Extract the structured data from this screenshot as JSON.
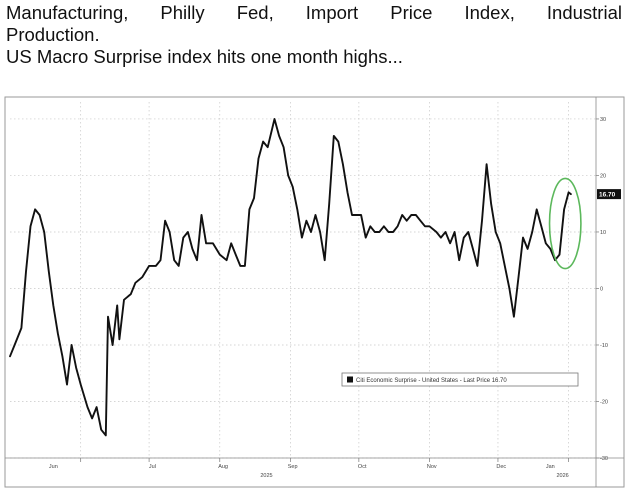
{
  "caption": {
    "line1_words": [
      "Manufacturing,",
      "Philly",
      "Fed,",
      "Import",
      "Price",
      "Index,",
      "Industrial"
    ],
    "line2": "Production.",
    "line3": "US Macro Surprise index hits one month highs..."
  },
  "chart_data": {
    "type": "line",
    "title": "",
    "xlabel": "",
    "ylabel": "",
    "ylim": [
      -30,
      33
    ],
    "y_ticks": [
      30,
      20,
      10,
      0,
      -10,
      -20,
      -30
    ],
    "x_range": [
      "2025-05-01",
      "2026-01-13"
    ],
    "month_ticks": [
      {
        "label": "Jun",
        "date": "2025-06-01"
      },
      {
        "label": "Jul",
        "date": "2025-07-01"
      },
      {
        "label": "Aug",
        "date": "2025-08-01"
      },
      {
        "label": "Sep",
        "date": "2025-09-01"
      },
      {
        "label": "Oct",
        "date": "2025-10-01"
      },
      {
        "label": "Nov",
        "date": "2025-11-01"
      },
      {
        "label": "Dec",
        "date": "2025-12-01"
      },
      {
        "label": "Jan",
        "date": "2026-01-01"
      }
    ],
    "year_labels": [
      {
        "label": "2025",
        "date": "2025-09-01"
      },
      {
        "label": "2026",
        "date": "2026-01-01"
      }
    ],
    "grid": true,
    "legend_position": "bottom-right",
    "legend_label": "Citi Economic Surprise - United States - Last Price 16.70",
    "last_value_label": "16.70",
    "highlight_circle": "last week of the series",
    "colors": {
      "line": "#111111",
      "highlight": "#5cb85c",
      "badge": "#111111",
      "grid": "#c8c8c8"
    },
    "series": [
      {
        "points": [
          [
            "2025-05-01",
            -12
          ],
          [
            "2025-05-03",
            -10
          ],
          [
            "2025-05-06",
            -7
          ],
          [
            "2025-05-08",
            3
          ],
          [
            "2025-05-10",
            11
          ],
          [
            "2025-05-12",
            14
          ],
          [
            "2025-05-14",
            13
          ],
          [
            "2025-05-16",
            10
          ],
          [
            "2025-05-18",
            3
          ],
          [
            "2025-05-20",
            -3
          ],
          [
            "2025-05-22",
            -8
          ],
          [
            "2025-05-24",
            -12
          ],
          [
            "2025-05-26",
            -17
          ],
          [
            "2025-05-28",
            -10
          ],
          [
            "2025-05-30",
            -14
          ],
          [
            "2025-06-01",
            -17
          ],
          [
            "2025-06-04",
            -21
          ],
          [
            "2025-06-06",
            -23
          ],
          [
            "2025-06-08",
            -21
          ],
          [
            "2025-06-10",
            -25
          ],
          [
            "2025-06-12",
            -26
          ],
          [
            "2025-06-13",
            -5
          ],
          [
            "2025-06-15",
            -10
          ],
          [
            "2025-06-17",
            -3
          ],
          [
            "2025-06-18",
            -9
          ],
          [
            "2025-06-20",
            -2
          ],
          [
            "2025-06-23",
            -1
          ],
          [
            "2025-06-25",
            1
          ],
          [
            "2025-06-28",
            2
          ],
          [
            "2025-07-01",
            4
          ],
          [
            "2025-07-04",
            4
          ],
          [
            "2025-07-06",
            5
          ],
          [
            "2025-07-08",
            12
          ],
          [
            "2025-07-10",
            10
          ],
          [
            "2025-07-12",
            5
          ],
          [
            "2025-07-14",
            4
          ],
          [
            "2025-07-16",
            9
          ],
          [
            "2025-07-18",
            10
          ],
          [
            "2025-07-20",
            7
          ],
          [
            "2025-07-22",
            5
          ],
          [
            "2025-07-24",
            13
          ],
          [
            "2025-07-26",
            8
          ],
          [
            "2025-07-29",
            8
          ],
          [
            "2025-08-01",
            6
          ],
          [
            "2025-08-04",
            5
          ],
          [
            "2025-08-06",
            8
          ],
          [
            "2025-08-08",
            6
          ],
          [
            "2025-08-10",
            4
          ],
          [
            "2025-08-12",
            4
          ],
          [
            "2025-08-14",
            14
          ],
          [
            "2025-08-16",
            16
          ],
          [
            "2025-08-18",
            23
          ],
          [
            "2025-08-20",
            26
          ],
          [
            "2025-08-22",
            25
          ],
          [
            "2025-08-25",
            30
          ],
          [
            "2025-08-27",
            27
          ],
          [
            "2025-08-29",
            25
          ],
          [
            "2025-08-31",
            20
          ],
          [
            "2025-09-02",
            18
          ],
          [
            "2025-09-04",
            14
          ],
          [
            "2025-09-06",
            9
          ],
          [
            "2025-09-08",
            12
          ],
          [
            "2025-09-10",
            10
          ],
          [
            "2025-09-12",
            13
          ],
          [
            "2025-09-14",
            10
          ],
          [
            "2025-09-16",
            5
          ],
          [
            "2025-09-18",
            15
          ],
          [
            "2025-09-20",
            27
          ],
          [
            "2025-09-22",
            26
          ],
          [
            "2025-09-24",
            22
          ],
          [
            "2025-09-26",
            17
          ],
          [
            "2025-09-28",
            13
          ],
          [
            "2025-09-30",
            13
          ],
          [
            "2025-10-02",
            13
          ],
          [
            "2025-10-04",
            9
          ],
          [
            "2025-10-06",
            11
          ],
          [
            "2025-10-08",
            10
          ],
          [
            "2025-10-10",
            10
          ],
          [
            "2025-10-12",
            11
          ],
          [
            "2025-10-14",
            10
          ],
          [
            "2025-10-16",
            10
          ],
          [
            "2025-10-18",
            11
          ],
          [
            "2025-10-20",
            13
          ],
          [
            "2025-10-22",
            12
          ],
          [
            "2025-10-24",
            13
          ],
          [
            "2025-10-26",
            13
          ],
          [
            "2025-10-28",
            12
          ],
          [
            "2025-10-30",
            11
          ],
          [
            "2025-11-01",
            11
          ],
          [
            "2025-11-04",
            10
          ],
          [
            "2025-11-06",
            9
          ],
          [
            "2025-11-08",
            10
          ],
          [
            "2025-11-10",
            8
          ],
          [
            "2025-11-12",
            10
          ],
          [
            "2025-11-14",
            5
          ],
          [
            "2025-11-16",
            9
          ],
          [
            "2025-11-18",
            10
          ],
          [
            "2025-11-20",
            7
          ],
          [
            "2025-11-22",
            4
          ],
          [
            "2025-11-24",
            12
          ],
          [
            "2025-11-26",
            22
          ],
          [
            "2025-11-28",
            15
          ],
          [
            "2025-11-30",
            10
          ],
          [
            "2025-12-02",
            8
          ],
          [
            "2025-12-04",
            4
          ],
          [
            "2025-12-06",
            0
          ],
          [
            "2025-12-08",
            -5
          ],
          [
            "2025-12-10",
            2
          ],
          [
            "2025-12-12",
            9
          ],
          [
            "2025-12-14",
            7
          ],
          [
            "2025-12-16",
            10
          ],
          [
            "2025-12-18",
            14
          ],
          [
            "2025-12-20",
            11
          ],
          [
            "2025-12-22",
            8
          ],
          [
            "2025-12-24",
            7
          ],
          [
            "2025-12-26",
            5
          ],
          [
            "2025-12-28",
            6
          ],
          [
            "2025-12-30",
            14
          ],
          [
            "2026-01-01",
            17
          ],
          [
            "2026-01-02",
            16.7
          ]
        ]
      }
    ]
  }
}
